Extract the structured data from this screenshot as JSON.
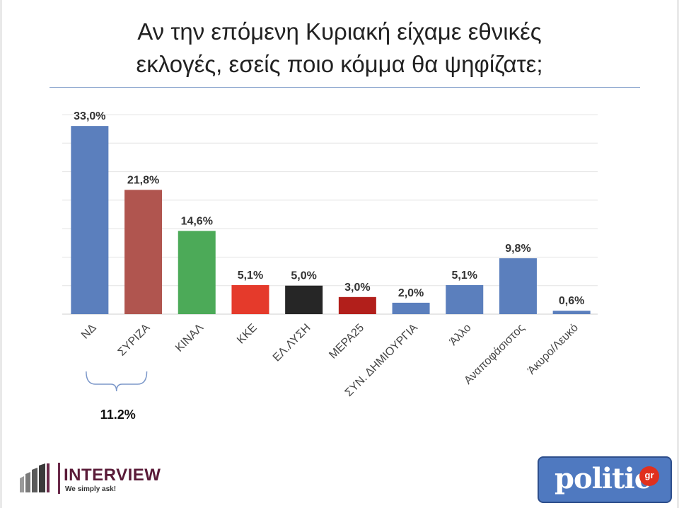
{
  "title": {
    "line1": "Αν την επόμενη Κυριακή είχαμε εθνικές",
    "line2": "εκλογές, εσείς ποιο κόμμα θα ψηφίζατε;"
  },
  "chart_data": {
    "type": "bar",
    "categories": [
      "ΝΔ",
      "ΣΥΡΙΖΑ",
      "ΚΙΝΑΛ",
      "ΚΚΕ",
      "ΕΛ.ΛΥΣΗ",
      "ΜΕΡΑ25",
      "ΣΥΝ. ΔΗΜΙΟΥΡΓΙΑ",
      "Άλλο",
      "Αναποφάσιστος",
      "Άκυρο/Λευκό"
    ],
    "values": [
      33.0,
      21.8,
      14.6,
      5.1,
      5.0,
      3.0,
      2.0,
      5.1,
      9.8,
      0.6
    ],
    "data_labels": [
      "33,0%",
      "21,8%",
      "14,6%",
      "5,1%",
      "5,0%",
      "3,0%",
      "2,0%",
      "5,1%",
      "9,8%",
      "0,6%"
    ],
    "colors": [
      "#5b7fbd",
      "#b0554f",
      "#4caa58",
      "#e53a2b",
      "#262626",
      "#b21f1b",
      "#5b7fbd",
      "#5b7fbd",
      "#5b7fbd",
      "#5b7fbd"
    ],
    "ylim": [
      0,
      35
    ],
    "grid": true,
    "annotation": {
      "text": "11.2%",
      "spans": [
        "ΝΔ",
        "ΣΥΡΙΖΑ"
      ]
    }
  },
  "logos": {
    "interview_name": "INTERVIEW",
    "interview_tagline": "We simply ask!",
    "politic_text": "politic",
    "politic_suffix": "gr"
  }
}
